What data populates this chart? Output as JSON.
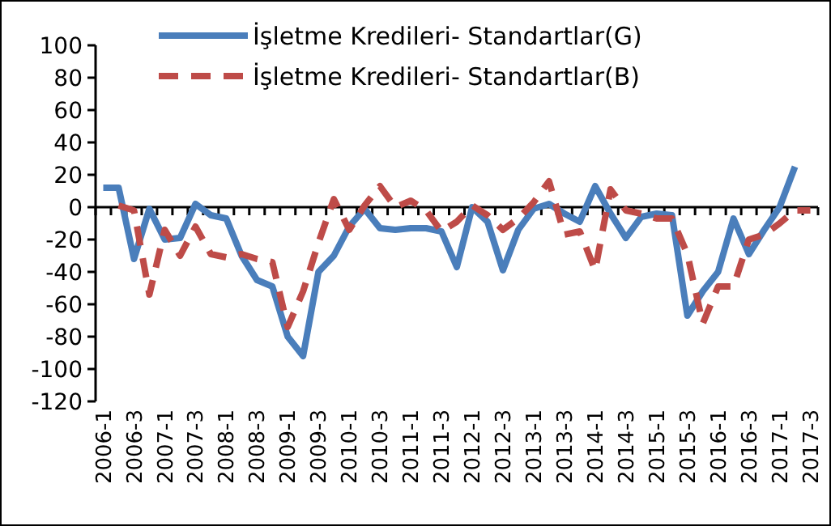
{
  "chart_data": {
    "type": "line",
    "categories": [
      "2006-1",
      null,
      "2006-3",
      null,
      "2007-1",
      null,
      "2007-3",
      null,
      "2008-1",
      null,
      "2008-3",
      null,
      "2009-1",
      null,
      "2009-3",
      null,
      "2010-1",
      null,
      "2010-3",
      null,
      "2011-1",
      null,
      "2011-3",
      null,
      "2012-1",
      null,
      "2012-3",
      null,
      "2013-1",
      null,
      "2013-3",
      null,
      "2014-1",
      null,
      "2014-3",
      null,
      "2015-1",
      null,
      "2015-3",
      null,
      "2016-1",
      null,
      "2016-3",
      null,
      "2017-1",
      null,
      "2017-3"
    ],
    "series": [
      {
        "name": "İşletme Kredileri- Standartlar(G)",
        "color": "#4a7ebb",
        "line_style": "solid",
        "values": [
          12,
          12,
          -32,
          -1,
          -20,
          -19,
          2,
          -5,
          -7,
          -30,
          -45,
          -49,
          -80,
          -92,
          -40,
          -30,
          -12,
          -1,
          -13,
          -14,
          -13,
          -13,
          -15,
          -37,
          0,
          -9,
          -39,
          -14,
          -1,
          2,
          -4,
          -9,
          13,
          -4,
          -19,
          -6,
          -4,
          -5,
          -67,
          -52,
          -40,
          -7,
          -29,
          -14,
          0,
          25,
          null
        ]
      },
      {
        "name": "İşletme Kredileri- Standartlar(B)",
        "color": "#be4b48",
        "line_style": "dashed",
        "values": [
          null,
          1,
          -2,
          -54,
          -14,
          -30,
          -12,
          -29,
          -31,
          -29,
          -32,
          -34,
          -74,
          -52,
          -22,
          5,
          -14,
          1,
          13,
          0,
          4,
          -2,
          -15,
          -9,
          1,
          -5,
          -14,
          -7,
          3,
          16,
          -17,
          -15,
          -39,
          11,
          -2,
          -4,
          -7,
          -7,
          -29,
          -72,
          -49,
          -49,
          -20,
          -17,
          -10,
          -2,
          -2
        ]
      }
    ],
    "ylim": [
      -120,
      100
    ],
    "yticks": [
      -120,
      -100,
      -80,
      -60,
      -40,
      -20,
      0,
      20,
      40,
      60,
      80,
      100
    ],
    "legend": "top"
  }
}
